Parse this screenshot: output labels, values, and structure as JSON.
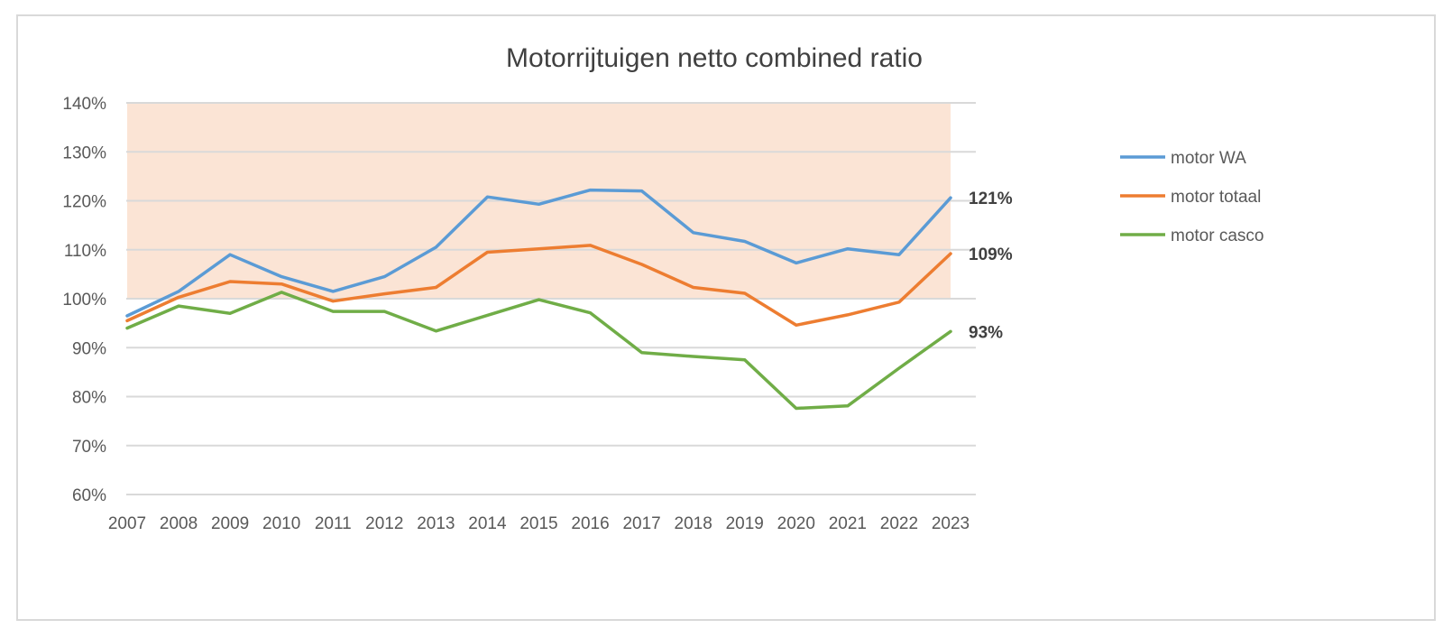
{
  "chart_data": {
    "type": "line",
    "title": "Motorrijtuigen netto combined ratio",
    "xlabel": "",
    "ylabel": "",
    "x": [
      "2007",
      "2008",
      "2009",
      "2010",
      "2011",
      "2012",
      "2013",
      "2014",
      "2015",
      "2016",
      "2017",
      "2018",
      "2019",
      "2020",
      "2021",
      "2022",
      "2023"
    ],
    "ylim": [
      60,
      140
    ],
    "yticks": [
      "60%",
      "70%",
      "80%",
      "90%",
      "100%",
      "110%",
      "120%",
      "130%",
      "140%"
    ],
    "shaded_band": {
      "from": 100,
      "to": 140,
      "color": "#fbe4d5"
    },
    "grid": true,
    "legend_position": "right",
    "series": [
      {
        "name": "motor WA",
        "color": "#5b9bd5",
        "values": [
          96.5,
          101.5,
          109.0,
          104.5,
          101.5,
          104.5,
          110.5,
          120.8,
          119.3,
          122.2,
          122.0,
          113.5,
          111.7,
          107.3,
          110.2,
          109.0,
          120.6
        ],
        "end_label": "121%"
      },
      {
        "name": "motor totaal",
        "color": "#ed7d31",
        "values": [
          95.5,
          100.3,
          103.5,
          103.0,
          99.5,
          101.0,
          102.3,
          109.5,
          110.2,
          110.9,
          107.0,
          102.3,
          101.1,
          94.6,
          96.7,
          99.3,
          109.2
        ],
        "end_label": "109%"
      },
      {
        "name": "motor casco",
        "color": "#70ad47",
        "values": [
          94.0,
          98.5,
          97.0,
          101.3,
          97.4,
          97.4,
          93.4,
          96.6,
          99.8,
          97.1,
          89.0,
          88.2,
          87.5,
          77.6,
          78.1,
          85.8,
          93.3
        ],
        "end_label": "93%"
      }
    ]
  }
}
